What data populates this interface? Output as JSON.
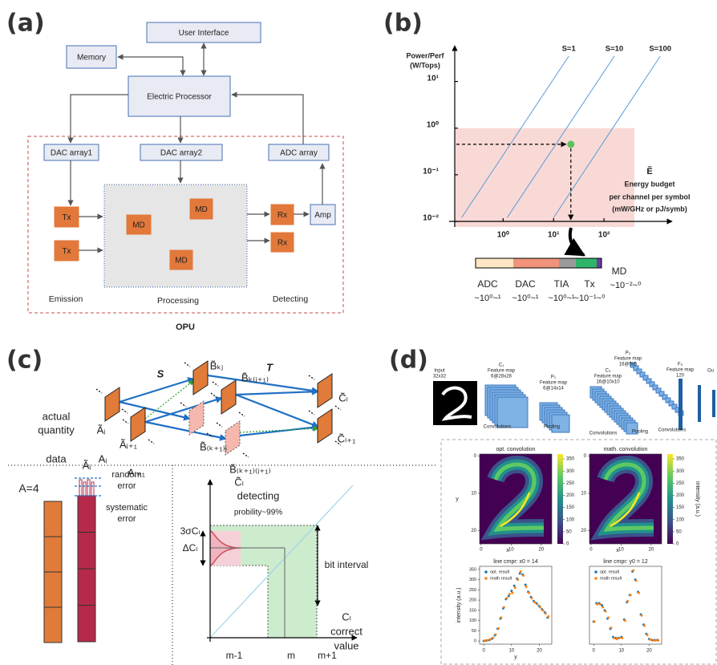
{
  "panel_labels": [
    "(a)",
    "(b)",
    "(c)",
    "(d)"
  ],
  "diagram_a": {
    "nodes": [
      "User Interface",
      "Memory",
      "Electric Processor",
      "DAC array1",
      "DAC array2",
      "ADC array",
      "Tx",
      "Tx",
      "MD",
      "MD",
      "MD",
      "Rx",
      "Rx",
      "Amp"
    ],
    "stages": [
      "Emission",
      "Processing",
      "Detecting"
    ],
    "region": "OPU"
  },
  "chart_data": [
    {
      "type": "line",
      "ylabel": [
        "Power/Perf",
        "(W/Tops)"
      ],
      "xlabel": [
        "Ẽ",
        "Energy budget",
        "per channel per symbol",
        "(mW/GHz or pJ/symb)"
      ],
      "log_x": true,
      "log_y": true,
      "xlim": [
        0.11,
        2000
      ],
      "ylim": [
        0.01,
        52
      ],
      "xticks": [
        {
          "value": 1,
          "label": "10⁰"
        },
        {
          "value": 10,
          "label": "10¹"
        },
        {
          "value": 100,
          "label": "10²"
        }
      ],
      "yticks": [
        {
          "value": 0.01,
          "label": "10⁻²"
        },
        {
          "value": 0.1,
          "label": "10⁻¹"
        },
        {
          "value": 1,
          "label": "10⁰"
        },
        {
          "value": 10,
          "label": "10¹"
        }
      ],
      "series": [
        {
          "name": "S=1",
          "color": "#5b9bd5",
          "x": [
            0.15,
            20
          ],
          "values": [
            0.012,
            35
          ]
        },
        {
          "name": "S=10",
          "color": "#5b9bd5",
          "x": [
            1.2,
            160
          ],
          "values": [
            0.012,
            35
          ]
        },
        {
          "name": "S=100",
          "color": "#5b9bd5",
          "x": [
            10,
            1300
          ],
          "values": [
            0.012,
            35
          ]
        }
      ],
      "point": {
        "x": 22,
        "y": 0.45,
        "color": "#5cc15c"
      },
      "region": {
        "xlim": [
          0.11,
          400
        ],
        "ylim": [
          0.01,
          1
        ],
        "color": "#f9d9d6"
      }
    },
    {
      "type": "heatmap",
      "title": "opt. convolution",
      "xlabel": "x",
      "ylabel": "y",
      "xlim": [
        -0.5,
        23.5
      ],
      "ylim": [
        23.5,
        -0.5
      ],
      "xticks": [
        0,
        10,
        20
      ],
      "yticks": [
        0,
        10,
        20
      ],
      "clim": [
        0,
        370
      ],
      "cticks": [
        0,
        50,
        100,
        150,
        200,
        250,
        300,
        350
      ]
    },
    {
      "type": "heatmap",
      "title": "math. convolution",
      "xlabel": "x",
      "clabel": "intensity (a.u.)",
      "xlim": [
        -0.5,
        23.5
      ],
      "ylim": [
        23.5,
        -0.5
      ],
      "xticks": [
        0,
        10,
        20
      ],
      "yticks": [
        0,
        10,
        20
      ],
      "clim": [
        0,
        370
      ],
      "cticks": [
        0,
        50,
        100,
        150,
        200,
        250,
        300,
        350
      ]
    },
    {
      "type": "scatter",
      "title": "line cmpr: x0 = 14",
      "xlabel": "y",
      "ylabel": "intensity (a.u.)",
      "xlim": [
        -1.5,
        24.5
      ],
      "ylim": [
        -15,
        365
      ],
      "xticks": [
        0,
        10,
        20
      ],
      "yticks": [
        0,
        50,
        100,
        150,
        200,
        250,
        300,
        350
      ],
      "x": [
        0,
        1,
        2,
        3,
        4,
        5,
        6,
        7,
        8,
        9,
        10,
        11,
        12,
        13,
        14,
        15,
        16,
        17,
        18,
        19,
        20,
        21,
        22,
        23
      ],
      "series": [
        {
          "name": "opt. result",
          "color": "#1f77b4",
          "values": [
            0,
            2,
            5,
            12,
            28,
            60,
            110,
            160,
            205,
            220,
            245,
            270,
            305,
            330,
            325,
            275,
            240,
            215,
            195,
            185,
            170,
            155,
            140,
            115
          ]
        },
        {
          "name": "math result",
          "color": "#ff7f0e",
          "values": [
            2,
            4,
            8,
            16,
            32,
            62,
            115,
            165,
            210,
            230,
            235,
            260,
            300,
            340,
            320,
            265,
            235,
            210,
            190,
            180,
            165,
            150,
            135,
            120
          ]
        }
      ]
    },
    {
      "type": "scatter",
      "title": "line cmpr: y0 = 12",
      "xlim": [
        -1.5,
        24.5
      ],
      "ylim": [
        -15,
        365
      ],
      "xticks": [
        0,
        10,
        20
      ],
      "x": [
        0,
        1,
        2,
        3,
        4,
        5,
        6,
        7,
        8,
        9,
        10,
        11,
        12,
        13,
        14,
        15,
        16,
        17,
        18,
        19,
        20,
        21,
        22,
        23
      ],
      "series": [
        {
          "name": "opt. result",
          "color": "#1f77b4",
          "values": [
            95,
            185,
            185,
            175,
            150,
            110,
            60,
            20,
            15,
            15,
            20,
            105,
            190,
            225,
            340,
            300,
            240,
            130,
            80,
            35,
            10,
            5,
            5,
            5
          ]
        },
        {
          "name": "math result",
          "color": "#ff7f0e",
          "values": [
            95,
            180,
            180,
            165,
            145,
            115,
            65,
            15,
            10,
            15,
            15,
            100,
            195,
            225,
            345,
            295,
            235,
            125,
            75,
            30,
            8,
            3,
            3,
            3
          ]
        }
      ]
    }
  ],
  "energy_bar": [
    {
      "name": "ADC",
      "range": "~10⁰~¹"
    },
    {
      "name": "DAC",
      "range": "~10⁰~¹"
    },
    {
      "name": "TIA",
      "range": "~10⁰~¹"
    },
    {
      "name": "Tx",
      "range": "~10⁻¹~⁰"
    },
    {
      "name": "MD",
      "range": "~10⁻²~⁰"
    }
  ],
  "diagram_c": {
    "top": {
      "S": "S",
      "T": "T",
      "actual": "actual",
      "quantity": "quantity",
      "data": "data",
      "Ai": "Ãᵢ",
      "Ai1": "Ãᵢ₊₁",
      "ai": "Aᵢ",
      "ai1": "Aᵢ₊₁",
      "Bkj": "B̃ₖⱼ",
      "Bkj1": "B̃ₖ₍ⱼ₊₁₎",
      "Bk1j": "B̃₍ₖ₊₁₎ⱼ",
      "Bk1j1": "B̃₍ₖ₊₁₎₍ⱼ₊₁₎",
      "Cl": "C̃ₗ",
      "Cl1": "C̃ₗ₊₁"
    },
    "left": {
      "A": "A=4",
      "Ai": "Ãᵢ",
      "random": "random",
      "error1": "error",
      "systematic": "systematic",
      "error2": "error"
    },
    "right": {
      "Cl": "C̃ₗ",
      "detecting": "detecting",
      "prob": "probility~99%",
      "sigma": "3σCₗ",
      "delta": "ΔCₗ",
      "bit": "bit interval",
      "cl": "Cₗ",
      "correct": "correct",
      "value": "value",
      "m1": "m-1",
      "m": "m",
      "mp1": "m+1"
    }
  },
  "lenet": {
    "input": [
      "Input",
      "32x32"
    ],
    "maps": [
      [
        "C₁",
        "Feature map",
        "6@28x28"
      ],
      [
        "P₂",
        "Feature map",
        "6@14x14"
      ],
      [
        "C₃",
        "Feature map",
        "16@10x10"
      ],
      [
        "P₃",
        "Feature map",
        "16@5x5"
      ],
      [
        "F₅",
        "Feature map",
        "120"
      ]
    ],
    "output": "Ou",
    "ops": [
      "Convolutions",
      "Pooling",
      "Convolutions",
      "Pooling",
      "Convolutions"
    ]
  }
}
